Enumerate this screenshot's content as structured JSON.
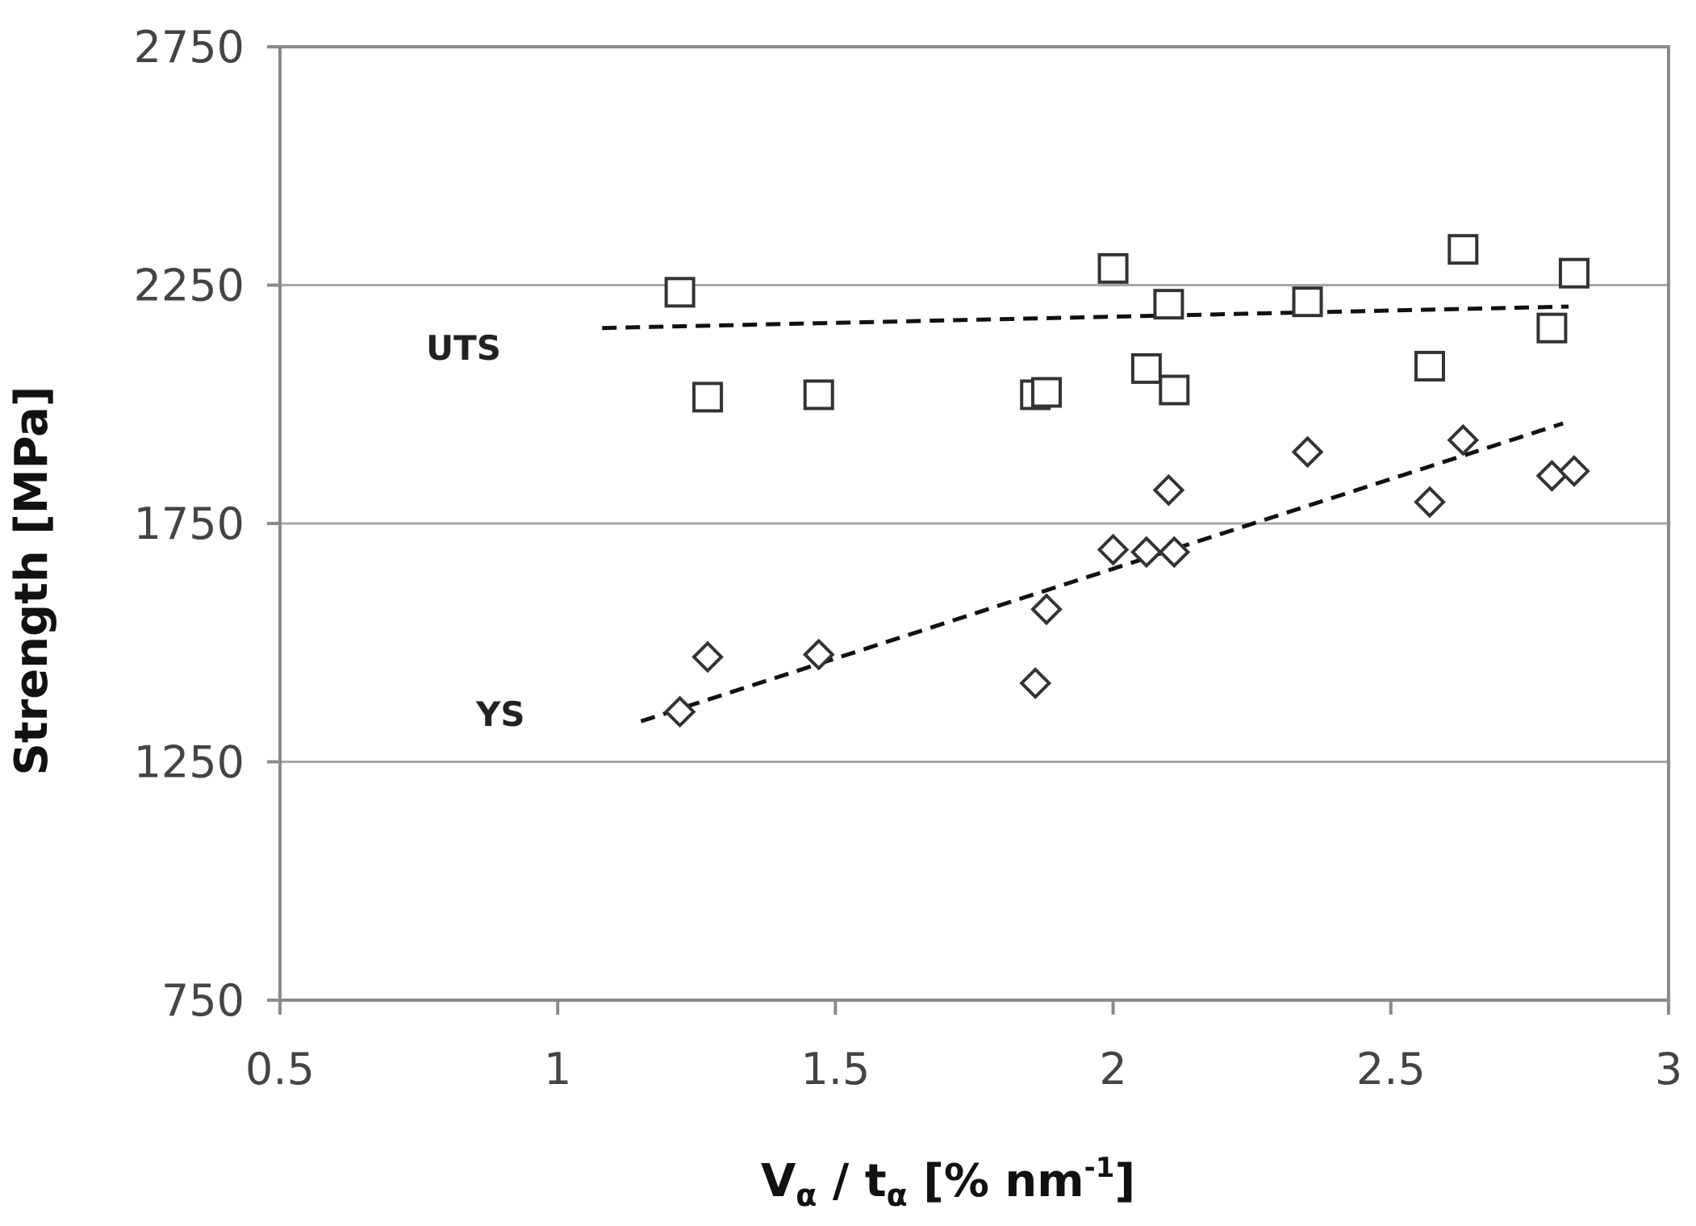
{
  "chart_data": {
    "type": "scatter",
    "title": "",
    "xlabel": {
      "prefix": "V",
      "sub1": "α",
      "mid": " / t",
      "sub2": "α",
      "unit": " [% nm",
      "sup": "-1",
      "close": "]"
    },
    "ylabel": "Strength [MPa]",
    "xlim": [
      0.5,
      3
    ],
    "ylim": [
      750,
      2750
    ],
    "xticks": [
      "0.5",
      "1",
      "1.5",
      "2",
      "2.5",
      "3"
    ],
    "yticks": [
      "750",
      "1250",
      "1750",
      "2250",
      "2750"
    ],
    "grid": {
      "horizontal": true,
      "vertical": false
    },
    "series": [
      {
        "name": "UTS",
        "marker": "square",
        "trendline": [
          [
            1.08,
            2160
          ],
          [
            2.82,
            2205
          ]
        ],
        "x": [
          1.22,
          1.27,
          1.47,
          1.86,
          1.88,
          2.0,
          2.06,
          2.1,
          2.11,
          2.35,
          2.57,
          2.63,
          2.79,
          2.83
        ],
        "y": [
          2235,
          2015,
          2020,
          2020,
          2025,
          2285,
          2075,
          2210,
          2030,
          2215,
          2080,
          2325,
          2160,
          2275
        ]
      },
      {
        "name": "YS",
        "marker": "diamond",
        "trendline": [
          [
            1.15,
            1335
          ],
          [
            2.81,
            1960
          ]
        ],
        "x": [
          1.22,
          1.27,
          1.47,
          1.86,
          1.88,
          2.0,
          2.06,
          2.1,
          2.11,
          2.35,
          2.57,
          2.63,
          2.79,
          2.83
        ],
        "y": [
          1355,
          1470,
          1475,
          1415,
          1570,
          1695,
          1690,
          1820,
          1690,
          1900,
          1795,
          1925,
          1850,
          1860
        ]
      }
    ]
  }
}
